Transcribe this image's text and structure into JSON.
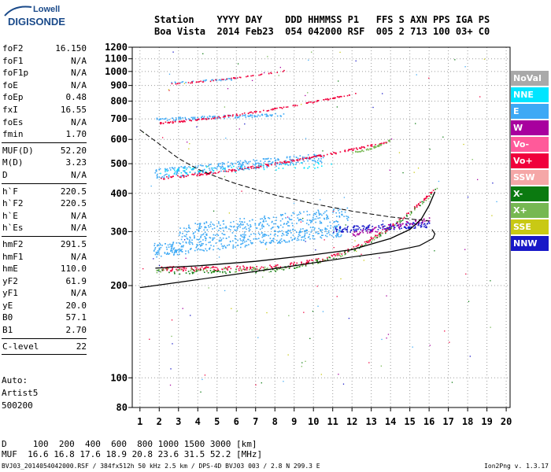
{
  "logo": {
    "line1": "Lowell",
    "line2": "DIGISONDE"
  },
  "header": {
    "line1": "Station    YYYY DAY    DDD HHMMSS P1   FFS S AXN PPS IGA PS",
    "line2": "Boa Vista  2014 Feb23  054 042000 RSF  005 2 713 100 03+ C0"
  },
  "params_groups": [
    [
      {
        "k": "foF2",
        "v": "16.150"
      },
      {
        "k": "foF1",
        "v": "N/A"
      },
      {
        "k": "foF1p",
        "v": "N/A"
      },
      {
        "k": "foE",
        "v": "N/A"
      },
      {
        "k": "foEp",
        "v": "0.48"
      },
      {
        "k": "fxI",
        "v": "16.55"
      },
      {
        "k": "foEs",
        "v": "N/A"
      },
      {
        "k": "fmin",
        "v": "1.70"
      }
    ],
    [
      {
        "k": "MUF(D)",
        "v": "52.20"
      },
      {
        "k": "M(D)",
        "v": "3.23"
      },
      {
        "k": "D",
        "v": "N/A"
      }
    ],
    [
      {
        "k": "h`F",
        "v": "220.5"
      },
      {
        "k": "h`F2",
        "v": "220.5"
      },
      {
        "k": "h`E",
        "v": "N/A"
      },
      {
        "k": "h`Es",
        "v": "N/A"
      }
    ],
    [
      {
        "k": "hmF2",
        "v": "291.5"
      },
      {
        "k": "hmF1",
        "v": "N/A"
      },
      {
        "k": "hmE",
        "v": "110.0"
      },
      {
        "k": "yF2",
        "v": "61.9"
      },
      {
        "k": "yF1",
        "v": "N/A"
      },
      {
        "k": "yE",
        "v": "20.0"
      },
      {
        "k": "B0",
        "v": "57.1"
      },
      {
        "k": "B1",
        "v": "2.70"
      }
    ],
    [
      {
        "k": "C-level",
        "v": "22"
      }
    ]
  ],
  "auto": {
    "line1": "Auto:",
    "line2": "Artist5",
    "line3": "500200"
  },
  "muf_table": {
    "line1": "D     100  200  400  600  800 1000 1500 3000 [km]",
    "line2": "MUF  16.6 16.8 17.6 18.9 20.8 23.6 31.5 52.2 [MHz]"
  },
  "footer": {
    "left": "BVJ03_2014054042000.RSF / 384fx512h 50 kHz 2.5 km / DPS-4D BVJ03 003 / 2.8 N 299.3 E",
    "right": "Ion2Png v. 1.3.17"
  },
  "legend": [
    {
      "label": "NoVal",
      "color": "#a9a9a9"
    },
    {
      "label": "NNE",
      "color": "#00e5ff"
    },
    {
      "label": "E",
      "color": "#3da9f5"
    },
    {
      "label": "W",
      "color": "#a8009e"
    },
    {
      "label": "Vo-",
      "color": "#ff5a9a"
    },
    {
      "label": "Vo+",
      "color": "#f0003c"
    },
    {
      "label": "SSW",
      "color": "#f5a7a7"
    },
    {
      "label": "X-",
      "color": "#0b7a10"
    },
    {
      "label": "X+",
      "color": "#76b852"
    },
    {
      "label": "SSE",
      "color": "#c9c914"
    },
    {
      "label": "NNW",
      "color": "#1818c8"
    }
  ],
  "chart_data": {
    "type": "scatter",
    "xlabel": "",
    "ylabel": "",
    "xlim": [
      0.6,
      20.2
    ],
    "ylim": [
      80,
      1200
    ],
    "y_scale": "log",
    "x_ticks": [
      1,
      2,
      3,
      4,
      5,
      6,
      7,
      8,
      9,
      10,
      11,
      12,
      13,
      14,
      15,
      16,
      17,
      18,
      19,
      20
    ],
    "y_ticks": [
      80,
      100,
      200,
      300,
      400,
      500,
      600,
      700,
      800,
      900,
      1000,
      1100,
      1200
    ],
    "grid": true,
    "series": [
      {
        "name": "E",
        "color": "#3da9f5",
        "traces": [
          {
            "x0": 1.7,
            "x1": 11.5,
            "y0": 262,
            "y1": 305,
            "spread": 28,
            "n": 420
          },
          {
            "x0": 3.0,
            "x1": 11.8,
            "y0": 300,
            "y1": 345,
            "spread": 35,
            "n": 300
          },
          {
            "x0": 1.7,
            "x1": 10.5,
            "y0": 465,
            "y1": 525,
            "spread": 35,
            "n": 300
          },
          {
            "x0": 1.8,
            "x1": 8.5,
            "y0": 700,
            "y1": 725,
            "spread": 18,
            "n": 120
          },
          {
            "x0": 2.5,
            "x1": 6.0,
            "y0": 920,
            "y1": 950,
            "spread": 12,
            "n": 30
          }
        ]
      },
      {
        "name": "Vo+",
        "color": "#f0003c",
        "traces": [
          {
            "x0": 2.0,
            "x1": 16.2,
            "y0": 228,
            "y1": 410,
            "curve": "steep",
            "n": 250
          },
          {
            "x0": 2.0,
            "x1": 13.8,
            "y0": 450,
            "y1": 590,
            "curve": "mid",
            "n": 200
          },
          {
            "x0": 2.0,
            "x1": 12.5,
            "y0": 680,
            "y1": 860,
            "curve": "mid",
            "n": 150
          },
          {
            "x0": 2.5,
            "x1": 8.5,
            "y0": 915,
            "y1": 1010,
            "curve": "mid",
            "n": 50
          }
        ]
      },
      {
        "name": "X+",
        "color": "#76b852",
        "traces": [
          {
            "x0": 1.8,
            "x1": 16.4,
            "y0": 225,
            "y1": 415,
            "curve": "steep",
            "n": 100
          },
          {
            "x0": 12.0,
            "x1": 14.0,
            "y0": 545,
            "y1": 600,
            "curve": "mid",
            "n": 40
          }
        ]
      },
      {
        "name": "X-",
        "color": "#0b7a10",
        "traces": [
          {
            "x0": 1.8,
            "x1": 16.3,
            "y0": 223,
            "y1": 412,
            "curve": "steep",
            "n": 100
          }
        ]
      },
      {
        "name": "NNW",
        "color": "#1818c8",
        "traces": [
          {
            "x0": 11.0,
            "x1": 16.0,
            "y0": 305,
            "y1": 318,
            "spread": 14,
            "n": 160
          }
        ]
      },
      {
        "name": "W",
        "color": "#a8009e",
        "traces": [
          {
            "x0": 12.0,
            "x1": 16.0,
            "y0": 295,
            "y1": 330,
            "spread": 12,
            "n": 80
          }
        ]
      },
      {
        "name": "NNE",
        "color": "#00e5ff",
        "traces": [
          {
            "x0": 2.0,
            "x1": 11.0,
            "y0": 470,
            "y1": 500,
            "spread": 25,
            "n": 60
          }
        ]
      }
    ],
    "profile_lines": {
      "true_height": [
        [
          1,
          197
        ],
        [
          3,
          205
        ],
        [
          6,
          218
        ],
        [
          9,
          232
        ],
        [
          12,
          248
        ],
        [
          14,
          258
        ],
        [
          15.5,
          270
        ],
        [
          16.2,
          285
        ],
        [
          16.3,
          295
        ],
        [
          16.15,
          305
        ]
      ],
      "trace_fit": [
        [
          1.8,
          228
        ],
        [
          4,
          232
        ],
        [
          7,
          240
        ],
        [
          10,
          252
        ],
        [
          12,
          262
        ],
        [
          14,
          285
        ],
        [
          15,
          305
        ],
        [
          15.6,
          330
        ],
        [
          16.0,
          365
        ],
        [
          16.3,
          405
        ]
      ],
      "dashed": [
        [
          1,
          645
        ],
        [
          2,
          580
        ],
        [
          3,
          520
        ],
        [
          4,
          480
        ],
        [
          5,
          452
        ],
        [
          6,
          430
        ],
        [
          8,
          395
        ],
        [
          10,
          370
        ],
        [
          12,
          350
        ],
        [
          14,
          335
        ],
        [
          16,
          325
        ]
      ]
    }
  }
}
